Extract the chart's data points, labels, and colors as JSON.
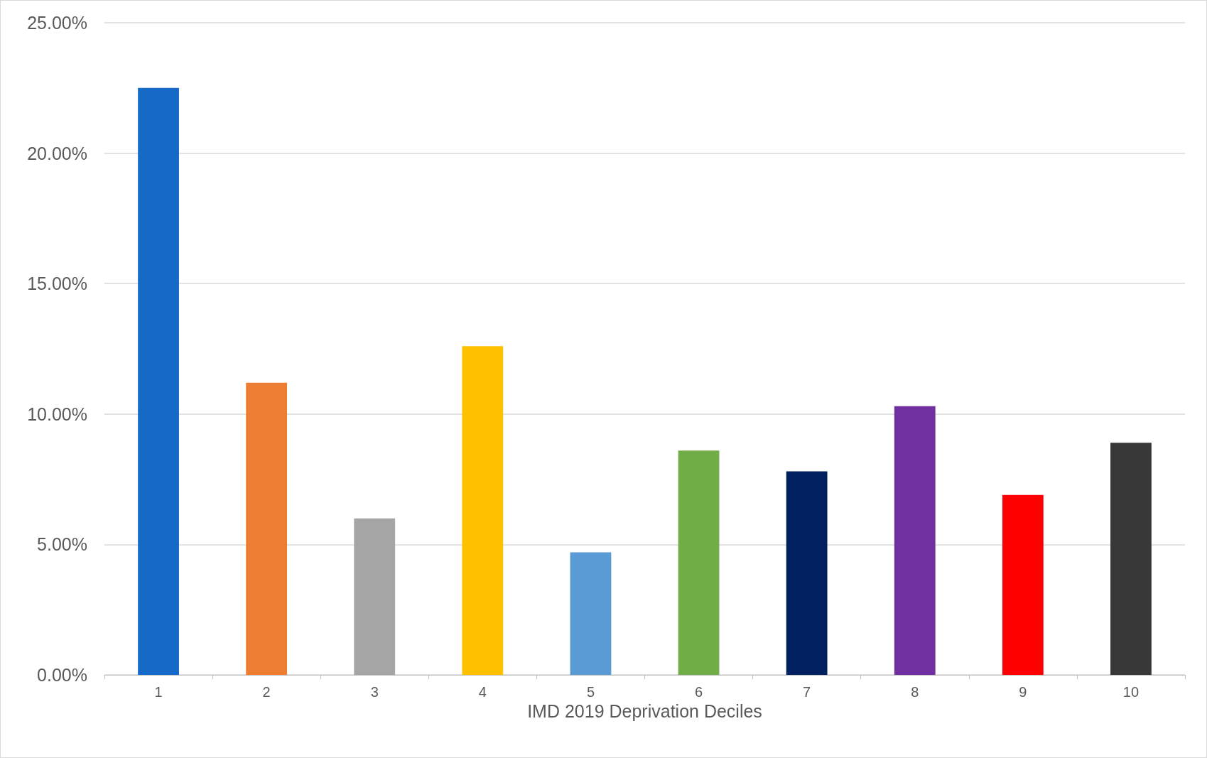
{
  "chart_data": {
    "type": "bar",
    "xlabel": "IMD 2019 Deprivation Deciles",
    "categories": [
      "1",
      "2",
      "3",
      "4",
      "5",
      "6",
      "7",
      "8",
      "9",
      "10"
    ],
    "values": [
      22.5,
      11.2,
      6.0,
      12.6,
      4.7,
      8.6,
      7.8,
      10.3,
      6.9,
      8.9
    ],
    "colors": [
      "#1569c7",
      "#ed7d31",
      "#a5a5a5",
      "#ffc000",
      "#5b9bd5",
      "#70ad47",
      "#002060",
      "#7030a0",
      "#ff0000",
      "#383838"
    ],
    "ylim": [
      0,
      25
    ],
    "yticks": [
      {
        "value": 0,
        "label": "0.00%"
      },
      {
        "value": 5,
        "label": "5.00%"
      },
      {
        "value": 10,
        "label": "10.00%"
      },
      {
        "value": 15,
        "label": "15.00%"
      },
      {
        "value": 20,
        "label": "20.00%"
      },
      {
        "value": 25,
        "label": "25.00%"
      }
    ],
    "grid": "y"
  }
}
